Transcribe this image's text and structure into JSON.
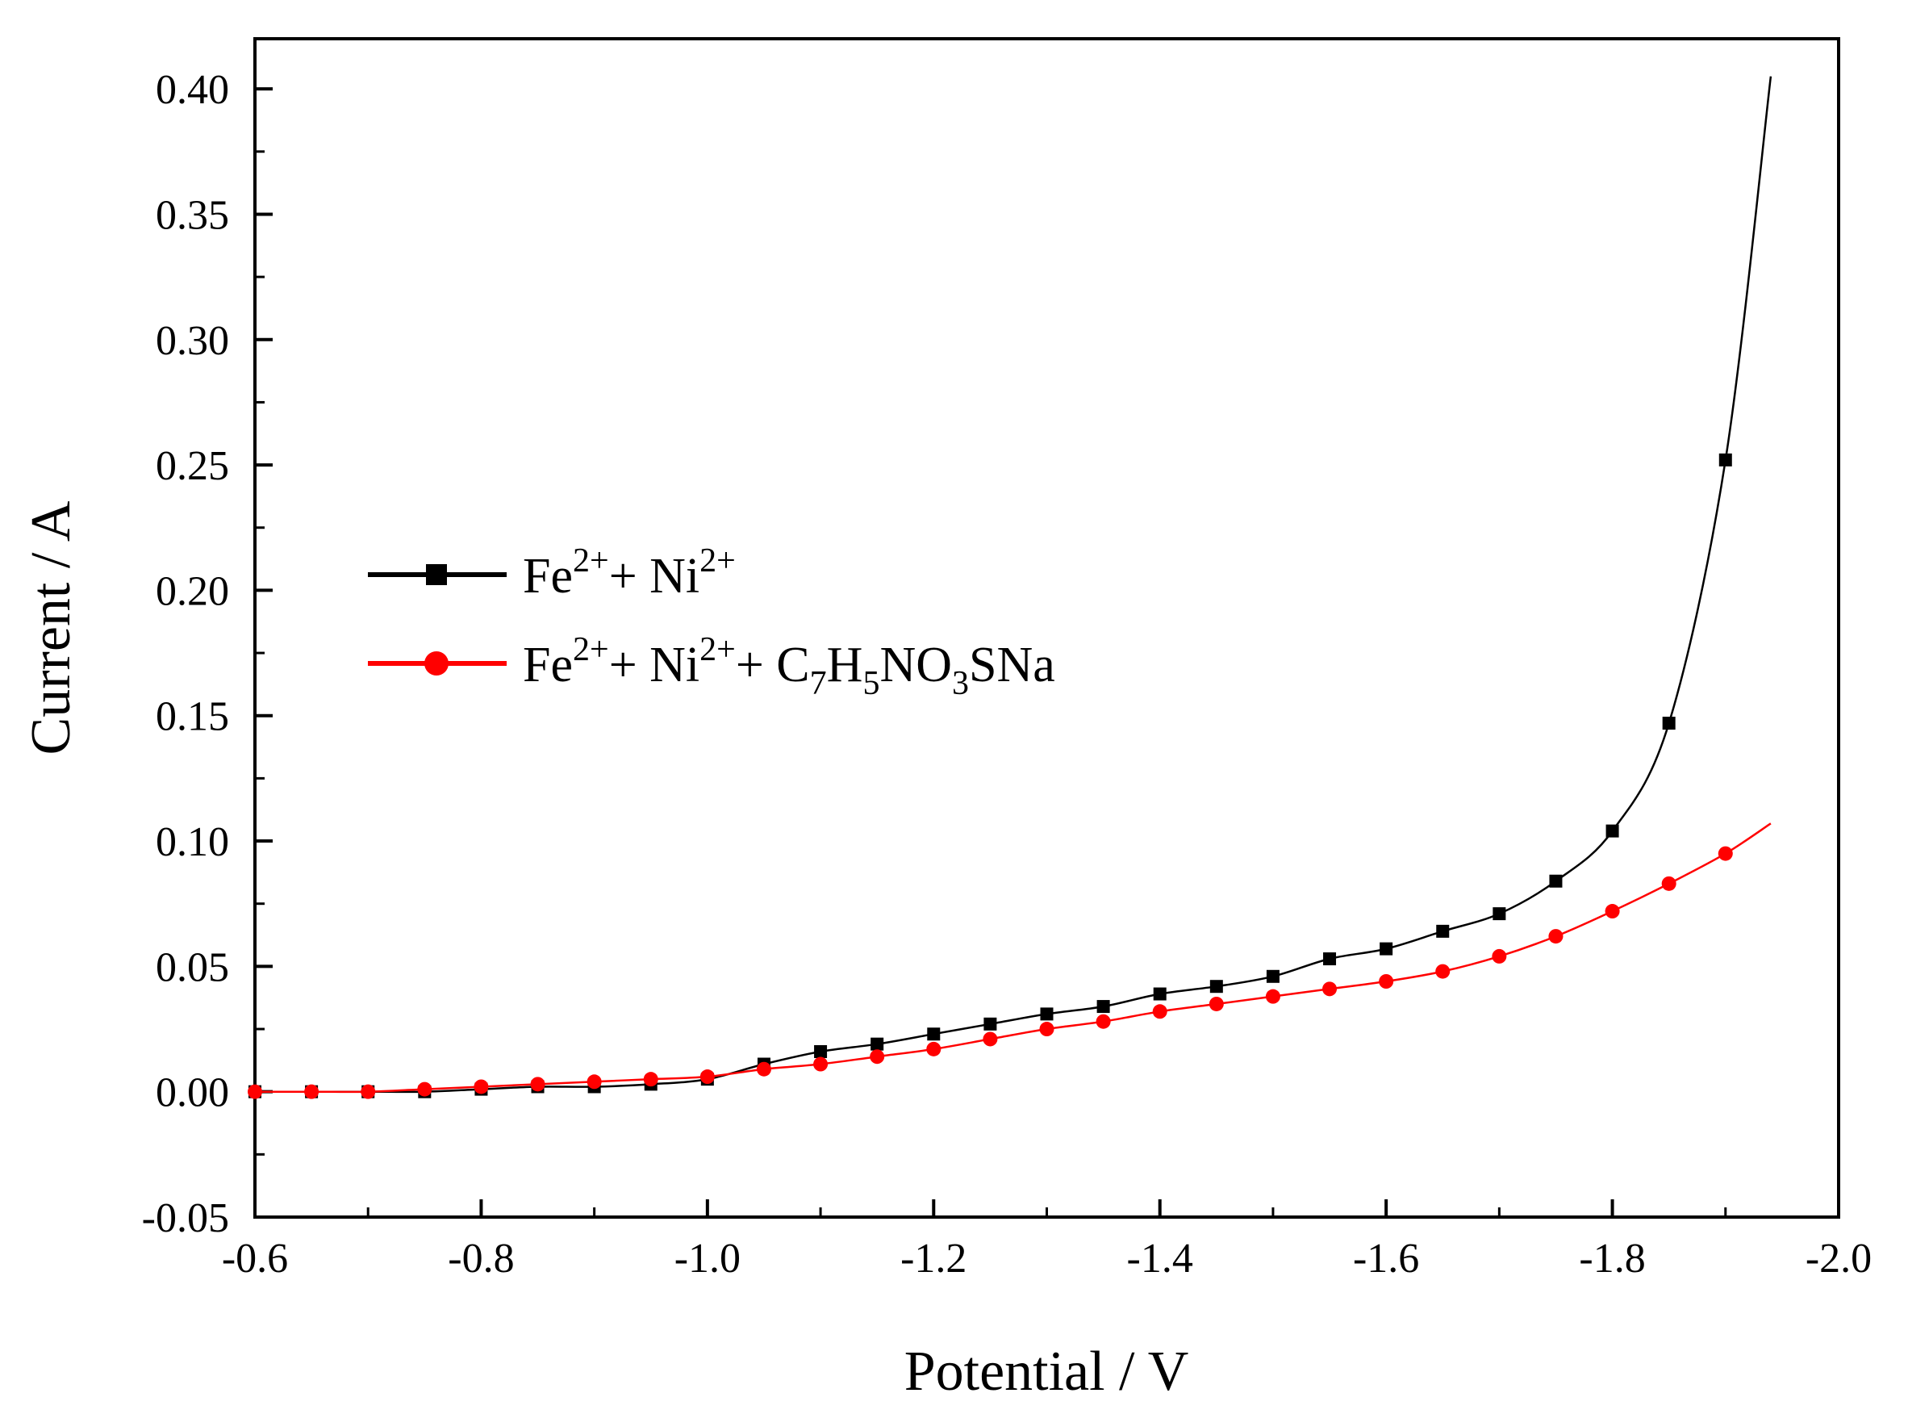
{
  "chart_data": {
    "type": "line",
    "title": "",
    "xlabel": "Potential / V",
    "ylabel": "Current / A",
    "xlim": [
      -0.6,
      -2.0
    ],
    "ylim": [
      -0.05,
      0.42
    ],
    "x_ticks": [
      -0.6,
      -0.8,
      -1.0,
      -1.2,
      -1.4,
      -1.6,
      -1.8,
      -2.0
    ],
    "x_tick_labels": [
      "-0.6",
      "-0.8",
      "-1.0",
      "-1.2",
      "-1.4",
      "-1.6",
      "-1.8",
      "-2.0"
    ],
    "y_ticks": [
      -0.05,
      0.0,
      0.05,
      0.1,
      0.15,
      0.2,
      0.25,
      0.3,
      0.35,
      0.4
    ],
    "y_tick_labels": [
      "-0.05",
      "0.00",
      "0.05",
      "0.10",
      "0.15",
      "0.20",
      "0.25",
      "0.30",
      "0.35",
      "0.40"
    ],
    "grid": false,
    "legend_position": "upper-left",
    "x": [
      -0.6,
      -0.65,
      -0.7,
      -0.75,
      -0.8,
      -0.85,
      -0.9,
      -0.95,
      -1.0,
      -1.05,
      -1.1,
      -1.15,
      -1.2,
      -1.25,
      -1.3,
      -1.35,
      -1.4,
      -1.45,
      -1.5,
      -1.55,
      -1.6,
      -1.65,
      -1.7,
      -1.75,
      -1.8,
      -1.85,
      -1.9
    ],
    "series": [
      {
        "name": "Fe2+ + Ni2+",
        "color": "#000000",
        "marker": "square",
        "legend_parts": [
          {
            "text": "Fe",
            "sup": false
          },
          {
            "text": "2+",
            "sup": true
          },
          {
            "text": "+ Ni",
            "sup": false
          },
          {
            "text": "2+",
            "sup": true
          }
        ],
        "values": [
          0.0,
          0.0,
          0.0,
          0.0,
          0.001,
          0.002,
          0.002,
          0.003,
          0.005,
          0.011,
          0.016,
          0.019,
          0.023,
          0.027,
          0.031,
          0.034,
          0.039,
          0.042,
          0.046,
          0.053,
          0.057,
          0.064,
          0.071,
          0.084,
          0.104,
          0.147,
          0.252
        ],
        "curve_end": {
          "x": -1.94,
          "y": 0.405
        }
      },
      {
        "name": "Fe2+ + Ni2+ + C7H5NO3SNa",
        "color": "#ff0000",
        "marker": "circle",
        "legend_parts": [
          {
            "text": "Fe",
            "sup": false
          },
          {
            "text": "2+",
            "sup": true
          },
          {
            "text": "+ Ni",
            "sup": false
          },
          {
            "text": "2+",
            "sup": true
          },
          {
            "text": "+ C",
            "sup": false
          },
          {
            "text": "7",
            "sub": true
          },
          {
            "text": "H",
            "sup": false
          },
          {
            "text": "5",
            "sub": true
          },
          {
            "text": "NO",
            "sup": false
          },
          {
            "text": "3",
            "sub": true
          },
          {
            "text": "SNa",
            "sup": false
          }
        ],
        "values": [
          0.0,
          0.0,
          0.0,
          0.001,
          0.002,
          0.003,
          0.004,
          0.005,
          0.006,
          0.009,
          0.011,
          0.014,
          0.017,
          0.021,
          0.025,
          0.028,
          0.032,
          0.035,
          0.038,
          0.041,
          0.044,
          0.048,
          0.054,
          0.062,
          0.072,
          0.083,
          0.095
        ],
        "curve_end": {
          "x": -1.94,
          "y": 0.107
        }
      }
    ]
  }
}
